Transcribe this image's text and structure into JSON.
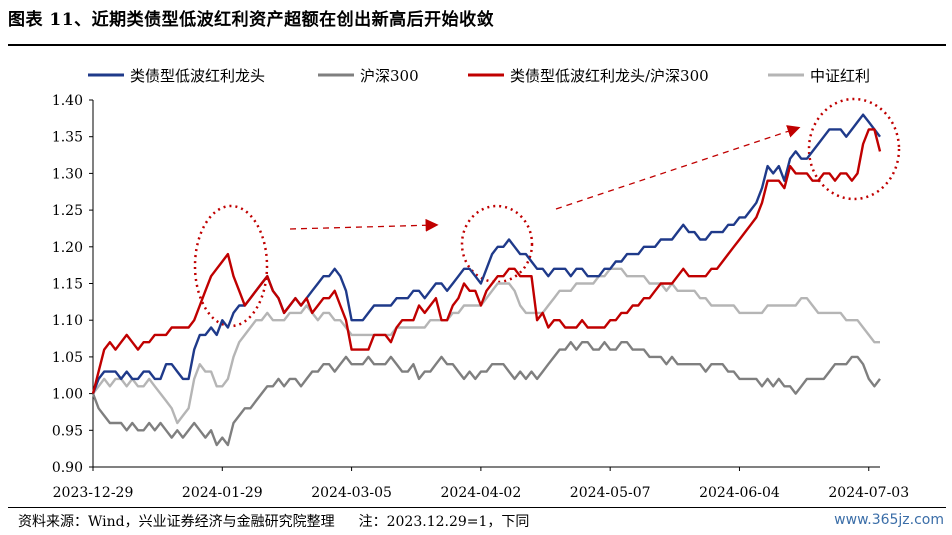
{
  "page": {
    "title": "图表 11、近期类债型低波红利资产超额在创出新高后开始收敛",
    "source": "资料来源：Wind，兴业证券经济与金融研究院整理",
    "note": "注：2023.12.29=1，下同",
    "watermark": "www.365jz.com"
  },
  "chart_data": {
    "type": "line",
    "ylim": [
      0.9,
      1.4
    ],
    "yticks": [
      "0.90",
      "0.95",
      "1.00",
      "1.05",
      "1.10",
      "1.15",
      "1.20",
      "1.25",
      "1.30",
      "1.35",
      "1.40"
    ],
    "xticks": [
      "2023-12-29",
      "2024-01-29",
      "2024-03-05",
      "2024-04-02",
      "2024-05-07",
      "2024-06-04",
      "2024-07-03"
    ],
    "legend_position": "top",
    "grid": false,
    "series": [
      {
        "name": "类债型低波红利龙头",
        "color": "#1f3a8a",
        "values": [
          1.0,
          1.02,
          1.03,
          1.03,
          1.03,
          1.02,
          1.03,
          1.02,
          1.02,
          1.03,
          1.03,
          1.02,
          1.02,
          1.04,
          1.04,
          1.03,
          1.02,
          1.02,
          1.06,
          1.08,
          1.08,
          1.09,
          1.08,
          1.1,
          1.09,
          1.11,
          1.12,
          1.12,
          1.13,
          1.14,
          1.15,
          1.16,
          1.14,
          1.13,
          1.11,
          1.12,
          1.13,
          1.12,
          1.13,
          1.14,
          1.15,
          1.16,
          1.16,
          1.17,
          1.16,
          1.14,
          1.1,
          1.1,
          1.1,
          1.11,
          1.12,
          1.12,
          1.12,
          1.12,
          1.13,
          1.13,
          1.13,
          1.14,
          1.14,
          1.13,
          1.14,
          1.15,
          1.15,
          1.14,
          1.15,
          1.16,
          1.17,
          1.17,
          1.16,
          1.15,
          1.17,
          1.19,
          1.2,
          1.2,
          1.21,
          1.2,
          1.19,
          1.19,
          1.18,
          1.17,
          1.17,
          1.16,
          1.17,
          1.17,
          1.17,
          1.16,
          1.17,
          1.17,
          1.16,
          1.16,
          1.16,
          1.17,
          1.17,
          1.18,
          1.18,
          1.19,
          1.19,
          1.19,
          1.2,
          1.2,
          1.2,
          1.21,
          1.21,
          1.21,
          1.22,
          1.23,
          1.22,
          1.22,
          1.21,
          1.21,
          1.22,
          1.22,
          1.22,
          1.23,
          1.23,
          1.24,
          1.24,
          1.25,
          1.26,
          1.28,
          1.31,
          1.3,
          1.31,
          1.29,
          1.32,
          1.33,
          1.32,
          1.32,
          1.33,
          1.34,
          1.35,
          1.36,
          1.36,
          1.36,
          1.35,
          1.36,
          1.37,
          1.38,
          1.37,
          1.36,
          1.35
        ]
      },
      {
        "name": "沪深300",
        "color": "#7f7f7f",
        "values": [
          1.0,
          0.98,
          0.97,
          0.96,
          0.96,
          0.96,
          0.95,
          0.96,
          0.95,
          0.95,
          0.96,
          0.95,
          0.96,
          0.95,
          0.94,
          0.95,
          0.94,
          0.95,
          0.96,
          0.95,
          0.94,
          0.95,
          0.93,
          0.94,
          0.93,
          0.96,
          0.97,
          0.98,
          0.98,
          0.99,
          1.0,
          1.01,
          1.01,
          1.02,
          1.01,
          1.02,
          1.02,
          1.01,
          1.02,
          1.03,
          1.03,
          1.04,
          1.04,
          1.03,
          1.04,
          1.05,
          1.04,
          1.04,
          1.04,
          1.05,
          1.04,
          1.04,
          1.04,
          1.05,
          1.04,
          1.03,
          1.03,
          1.04,
          1.02,
          1.03,
          1.03,
          1.04,
          1.05,
          1.04,
          1.04,
          1.03,
          1.02,
          1.03,
          1.02,
          1.03,
          1.03,
          1.04,
          1.04,
          1.04,
          1.03,
          1.02,
          1.03,
          1.02,
          1.03,
          1.02,
          1.03,
          1.04,
          1.05,
          1.06,
          1.06,
          1.07,
          1.06,
          1.07,
          1.07,
          1.06,
          1.06,
          1.07,
          1.06,
          1.06,
          1.07,
          1.07,
          1.06,
          1.06,
          1.06,
          1.05,
          1.05,
          1.05,
          1.04,
          1.05,
          1.04,
          1.04,
          1.04,
          1.04,
          1.04,
          1.03,
          1.04,
          1.04,
          1.04,
          1.03,
          1.03,
          1.02,
          1.02,
          1.02,
          1.02,
          1.01,
          1.02,
          1.01,
          1.02,
          1.01,
          1.01,
          1.0,
          1.01,
          1.02,
          1.02,
          1.02,
          1.02,
          1.03,
          1.04,
          1.04,
          1.04,
          1.05,
          1.05,
          1.04,
          1.02,
          1.01,
          1.02
        ]
      },
      {
        "name": "类债型低波红利龙头/沪深300",
        "color": "#c00000",
        "values": [
          1.0,
          1.03,
          1.06,
          1.07,
          1.06,
          1.07,
          1.08,
          1.07,
          1.06,
          1.07,
          1.07,
          1.08,
          1.08,
          1.08,
          1.09,
          1.09,
          1.09,
          1.09,
          1.1,
          1.12,
          1.14,
          1.16,
          1.17,
          1.18,
          1.19,
          1.16,
          1.14,
          1.12,
          1.13,
          1.14,
          1.15,
          1.16,
          1.14,
          1.13,
          1.11,
          1.12,
          1.13,
          1.12,
          1.13,
          1.11,
          1.12,
          1.13,
          1.13,
          1.14,
          1.12,
          1.1,
          1.06,
          1.06,
          1.06,
          1.06,
          1.08,
          1.08,
          1.08,
          1.07,
          1.09,
          1.1,
          1.1,
          1.1,
          1.12,
          1.11,
          1.12,
          1.13,
          1.1,
          1.1,
          1.12,
          1.13,
          1.15,
          1.14,
          1.14,
          1.12,
          1.14,
          1.15,
          1.16,
          1.16,
          1.17,
          1.17,
          1.16,
          1.16,
          1.16,
          1.1,
          1.11,
          1.09,
          1.1,
          1.1,
          1.09,
          1.09,
          1.09,
          1.1,
          1.09,
          1.09,
          1.09,
          1.09,
          1.1,
          1.1,
          1.11,
          1.11,
          1.12,
          1.12,
          1.13,
          1.13,
          1.14,
          1.15,
          1.15,
          1.15,
          1.16,
          1.17,
          1.16,
          1.16,
          1.16,
          1.16,
          1.17,
          1.17,
          1.18,
          1.19,
          1.2,
          1.21,
          1.22,
          1.23,
          1.24,
          1.26,
          1.29,
          1.29,
          1.29,
          1.28,
          1.31,
          1.3,
          1.3,
          1.3,
          1.29,
          1.29,
          1.3,
          1.3,
          1.29,
          1.3,
          1.3,
          1.29,
          1.3,
          1.34,
          1.36,
          1.36,
          1.33
        ]
      },
      {
        "name": "中证红利",
        "color": "#b5b5b5",
        "values": [
          1.0,
          1.01,
          1.02,
          1.01,
          1.02,
          1.02,
          1.01,
          1.02,
          1.01,
          1.01,
          1.02,
          1.01,
          1.0,
          0.99,
          0.98,
          0.96,
          0.97,
          0.98,
          1.02,
          1.04,
          1.03,
          1.03,
          1.01,
          1.01,
          1.02,
          1.05,
          1.07,
          1.08,
          1.09,
          1.1,
          1.1,
          1.11,
          1.1,
          1.1,
          1.1,
          1.11,
          1.11,
          1.11,
          1.12,
          1.11,
          1.1,
          1.11,
          1.11,
          1.1,
          1.1,
          1.09,
          1.08,
          1.08,
          1.08,
          1.08,
          1.08,
          1.08,
          1.08,
          1.08,
          1.09,
          1.09,
          1.09,
          1.09,
          1.09,
          1.09,
          1.1,
          1.1,
          1.1,
          1.1,
          1.11,
          1.11,
          1.12,
          1.12,
          1.12,
          1.12,
          1.13,
          1.14,
          1.15,
          1.15,
          1.15,
          1.14,
          1.12,
          1.11,
          1.11,
          1.11,
          1.11,
          1.12,
          1.13,
          1.14,
          1.14,
          1.14,
          1.15,
          1.15,
          1.15,
          1.15,
          1.16,
          1.16,
          1.17,
          1.17,
          1.17,
          1.16,
          1.16,
          1.16,
          1.16,
          1.15,
          1.15,
          1.15,
          1.14,
          1.15,
          1.14,
          1.14,
          1.14,
          1.14,
          1.13,
          1.13,
          1.12,
          1.12,
          1.12,
          1.12,
          1.12,
          1.11,
          1.11,
          1.11,
          1.11,
          1.11,
          1.12,
          1.12,
          1.12,
          1.12,
          1.12,
          1.12,
          1.13,
          1.13,
          1.12,
          1.11,
          1.11,
          1.11,
          1.11,
          1.11,
          1.1,
          1.1,
          1.1,
          1.09,
          1.08,
          1.07,
          1.07
        ]
      }
    ]
  }
}
